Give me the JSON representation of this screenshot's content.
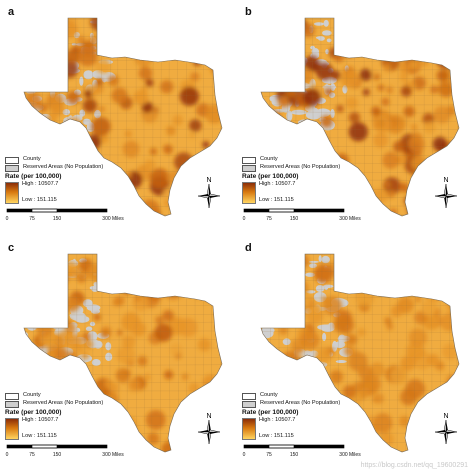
{
  "panels": [
    {
      "label": "a",
      "intensity": 1.0
    },
    {
      "label": "b",
      "intensity": 0.92
    },
    {
      "label": "c",
      "intensity": 0.45
    },
    {
      "label": "d",
      "intensity": 0.35
    }
  ],
  "legend": {
    "county_label": "County",
    "reserved_label": "Reserved Areas (No Population)",
    "rate_title": "Rate (per 100,000)",
    "high_label": "High : 10507.7",
    "low_label": "Low : 151.115",
    "ramp_colors": {
      "high": "#8a2d08",
      "mid": "#d7780f",
      "low": "#ffd460"
    },
    "reserved_color": "#cfcfcf"
  },
  "scale_bar": {
    "ticks": [
      "0",
      "75",
      "150",
      "",
      "300 Miles"
    ]
  },
  "compass": {
    "north_label": "N"
  },
  "watermark": "https://blog.csdn.net/qq_19600291"
}
